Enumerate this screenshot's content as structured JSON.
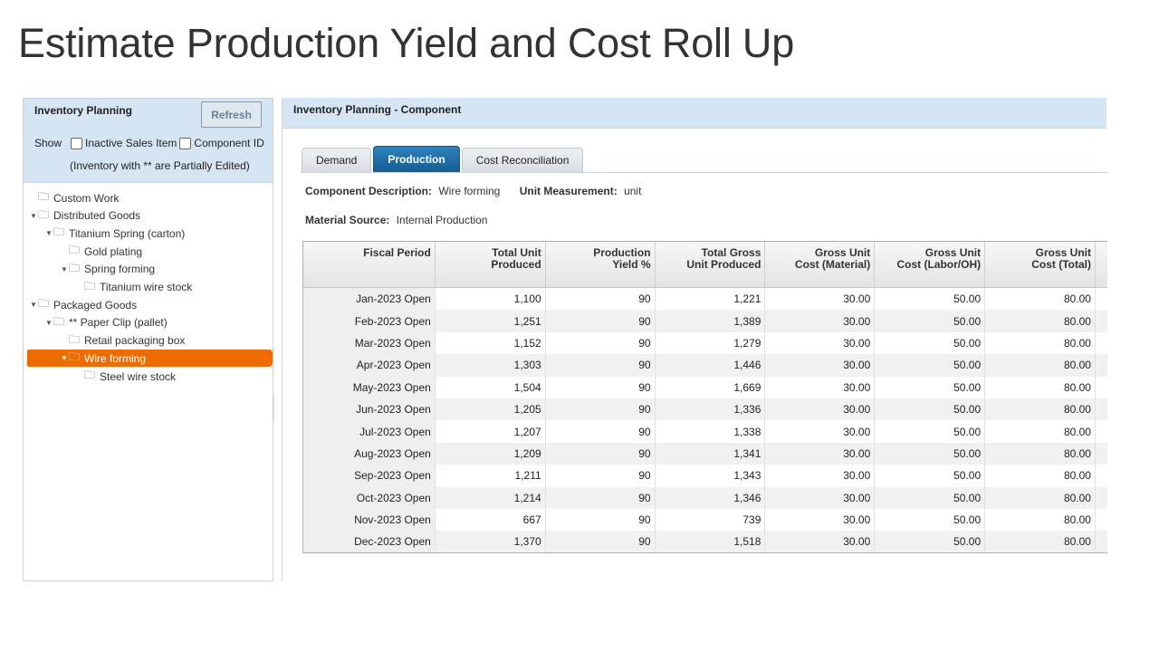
{
  "slide_title": "Estimate Production Yield and Cost Roll Up",
  "left_panel": {
    "title": "Inventory Planning",
    "refresh_label": "Refresh",
    "show_label": "Show",
    "checkboxes": [
      {
        "label": "Inactive Sales Item",
        "checked": false
      },
      {
        "label": "Component ID",
        "checked": false
      }
    ],
    "partial_note": "(Inventory with ** are Partially Edited)",
    "tree": [
      {
        "label": "Custom Work",
        "level": 0,
        "expanded": false,
        "has_arrow": false
      },
      {
        "label": "Distributed Goods",
        "level": 0,
        "expanded": true,
        "has_arrow": true
      },
      {
        "label": "Titanium Spring (carton)",
        "level": 1,
        "expanded": true,
        "has_arrow": true
      },
      {
        "label": "Gold plating",
        "level": 2,
        "expanded": false,
        "has_arrow": false
      },
      {
        "label": "Spring forming",
        "level": 2,
        "expanded": true,
        "has_arrow": true
      },
      {
        "label": "Titanium wire stock",
        "level": 3,
        "expanded": false,
        "has_arrow": false
      },
      {
        "label": "Packaged Goods",
        "level": 0,
        "expanded": true,
        "has_arrow": true
      },
      {
        "label": "** Paper Clip (pallet)",
        "level": 1,
        "expanded": true,
        "has_arrow": true
      },
      {
        "label": "Retail packaging box",
        "level": 2,
        "expanded": false,
        "has_arrow": false
      },
      {
        "label": "Wire forming",
        "level": 2,
        "expanded": true,
        "has_arrow": true,
        "selected": true
      },
      {
        "label": "Steel wire stock",
        "level": 3,
        "expanded": false,
        "has_arrow": false
      }
    ]
  },
  "right_panel": {
    "title": "Inventory Planning - Component",
    "tabs": [
      {
        "label": "Demand",
        "active": false
      },
      {
        "label": "Production",
        "active": true
      },
      {
        "label": "Cost Reconciliation",
        "active": false
      }
    ],
    "component_description_label": "Component Description:",
    "component_description_value": "Wire forming",
    "unit_measurement_label": "Unit Measurement:",
    "unit_measurement_value": "unit",
    "material_source_label": "Material Source:",
    "material_source_value": "Internal Production",
    "table": {
      "headers": [
        [
          "Fiscal Period",
          ""
        ],
        [
          "Total Unit",
          "Produced"
        ],
        [
          "Production",
          "Yield %"
        ],
        [
          "Total Gross",
          "Unit Produced"
        ],
        [
          "Gross Unit",
          "Cost (Material)"
        ],
        [
          "Gross Unit",
          "Cost (Labor/OH)"
        ],
        [
          "Gross Unit",
          "Cost (Total)"
        ]
      ],
      "rows": [
        [
          "Jan-2023 Open",
          "1,100",
          "90",
          "1,221",
          "30.00",
          "50.00",
          "80.00"
        ],
        [
          "Feb-2023 Open",
          "1,251",
          "90",
          "1,389",
          "30.00",
          "50.00",
          "80.00"
        ],
        [
          "Mar-2023 Open",
          "1,152",
          "90",
          "1,279",
          "30.00",
          "50.00",
          "80.00"
        ],
        [
          "Apr-2023 Open",
          "1,303",
          "90",
          "1,446",
          "30.00",
          "50.00",
          "80.00"
        ],
        [
          "May-2023 Open",
          "1,504",
          "90",
          "1,669",
          "30.00",
          "50.00",
          "80.00"
        ],
        [
          "Jun-2023 Open",
          "1,205",
          "90",
          "1,336",
          "30.00",
          "50.00",
          "80.00"
        ],
        [
          "Jul-2023 Open",
          "1,207",
          "90",
          "1,338",
          "30.00",
          "50.00",
          "80.00"
        ],
        [
          "Aug-2023 Open",
          "1,209",
          "90",
          "1,341",
          "30.00",
          "50.00",
          "80.00"
        ],
        [
          "Sep-2023 Open",
          "1,211",
          "90",
          "1,343",
          "30.00",
          "50.00",
          "80.00"
        ],
        [
          "Oct-2023 Open",
          "1,214",
          "90",
          "1,346",
          "30.00",
          "50.00",
          "80.00"
        ],
        [
          "Nov-2023 Open",
          "667",
          "90",
          "739",
          "30.00",
          "50.00",
          "80.00"
        ],
        [
          "Dec-2023 Open",
          "1,370",
          "90",
          "1,518",
          "30.00",
          "50.00",
          "80.00"
        ]
      ]
    }
  },
  "colors": {
    "header_bg": "#d6e5f3",
    "selected_item": "#ee6b00",
    "active_tab": "#1f6fa6"
  }
}
